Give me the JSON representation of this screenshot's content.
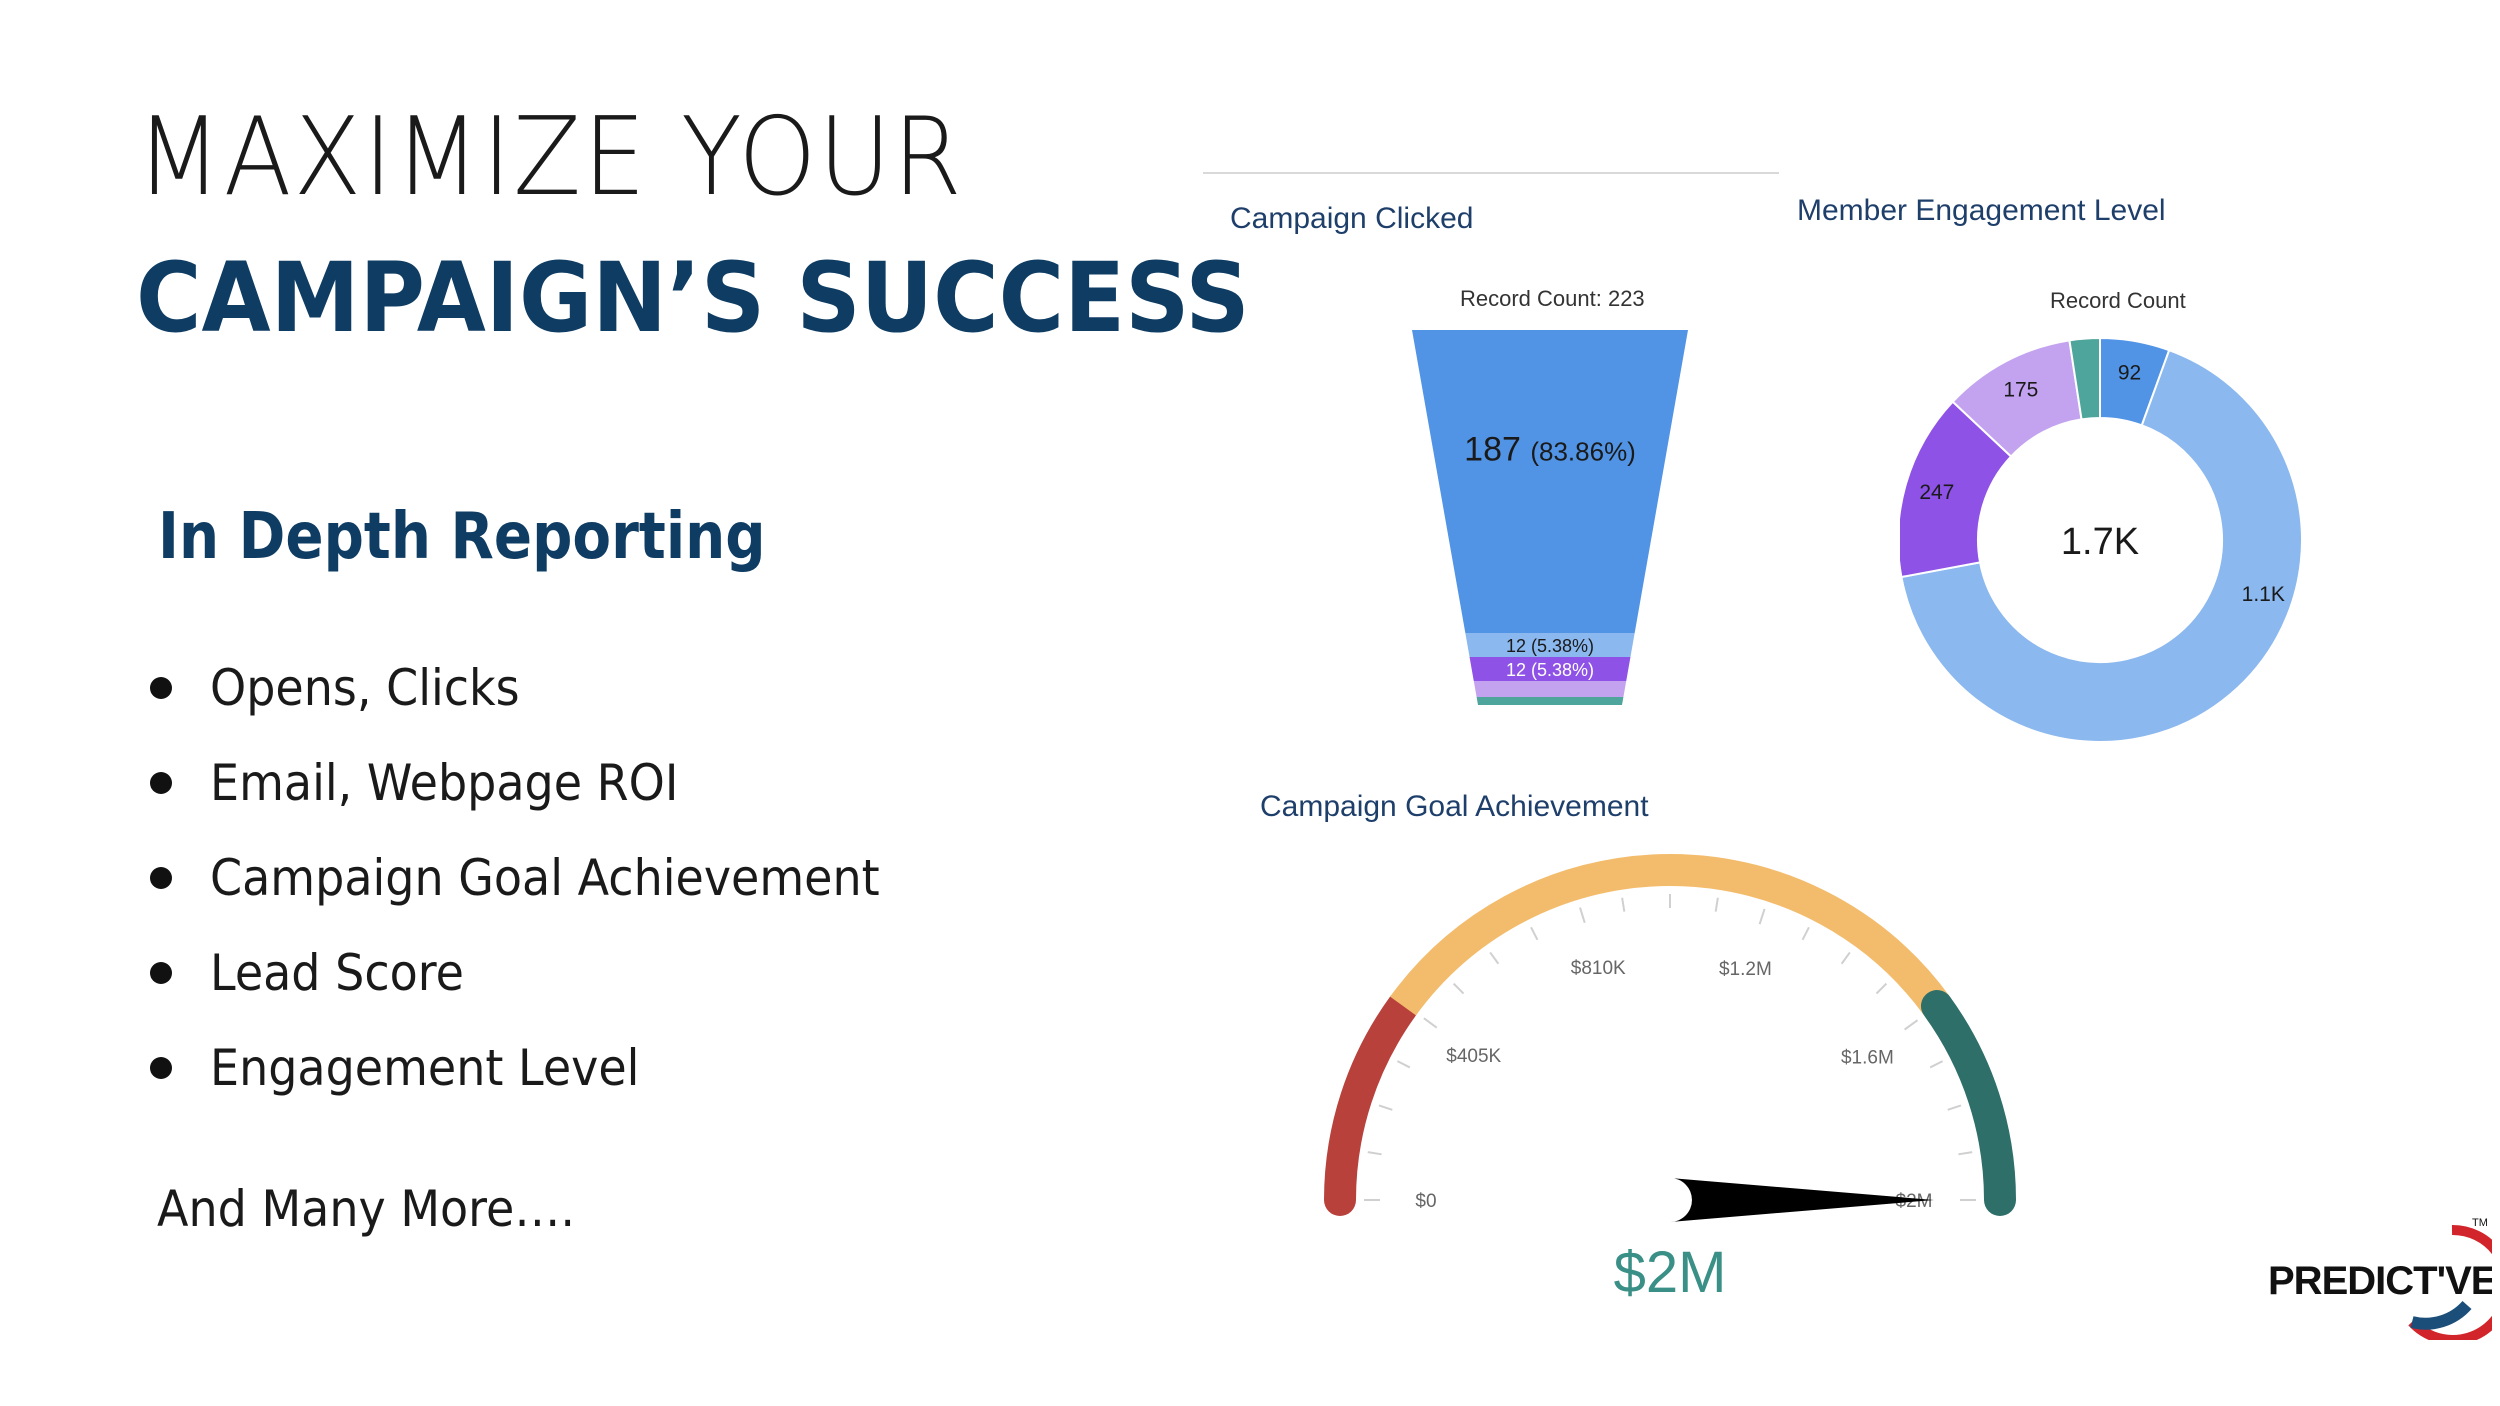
{
  "headline": {
    "line1": "MAXIMIZE YOUR",
    "line2": "CAMPAIGN’S SUCCESS"
  },
  "section": {
    "title": "In Depth Reporting",
    "bullets": [
      "Opens, Clicks",
      "Email, Webpage ROI",
      "Campaign Goal Achievement",
      "Lead Score",
      "Engagement Level"
    ],
    "footer": "And Many More…."
  },
  "logo": {
    "text": "PREDICT'VE",
    "tm": "TM"
  },
  "colors": {
    "navy": "#0e3c63",
    "funnel_blue": "#5194e6",
    "light_blue": "#8bb8ee",
    "purple": "#8e52e6",
    "lavender": "#c3a3f0",
    "teal": "#4ea59b",
    "gauge_red": "#b8413c",
    "gauge_orange": "#f3bc6c",
    "gauge_green": "#2f6f69"
  },
  "chart_data": [
    {
      "type": "funnel",
      "title": "Campaign Clicked",
      "subtitle": "Record Count: 223",
      "total": 223,
      "segments": [
        {
          "value": 187,
          "label": "187",
          "pct_label": "(83.86%)",
          "color": "#5194e6"
        },
        {
          "value": 12,
          "label": "12 (5.38%)",
          "color": "#8bb8ee"
        },
        {
          "value": 12,
          "label": "12 (5.38%)",
          "color": "#8e52e6"
        },
        {
          "value": 9,
          "label": "",
          "color": "#c3a3f0"
        },
        {
          "value": 3,
          "label": "",
          "color": "#4ea59b"
        }
      ]
    },
    {
      "type": "pie",
      "variant": "donut",
      "title": "Member Engagement Level",
      "subtitle": "Record Count",
      "center_label": "1.7K",
      "slices": [
        {
          "label": "92",
          "value": 92,
          "color": "#5194e6"
        },
        {
          "label": "1.1K",
          "value": 1100,
          "color": "#8bb8ee"
        },
        {
          "label": "247",
          "value": 247,
          "color": "#8e52e6"
        },
        {
          "label": "175",
          "value": 175,
          "color": "#c3a3f0"
        },
        {
          "label": "",
          "value": 40,
          "color": "#4ea59b"
        }
      ]
    },
    {
      "type": "gauge",
      "title": "Campaign Goal Achievement",
      "min": 0,
      "max": 2000000,
      "value": 2000000,
      "value_label": "$2M",
      "tick_labels": [
        "$0",
        "$405K",
        "$810K",
        "$1.2M",
        "$1.6M",
        "$2M"
      ],
      "tick_values": [
        0,
        405000,
        810000,
        1200000,
        1600000,
        2000000
      ],
      "bands": [
        {
          "from": 0,
          "to": 400000,
          "color": "#b8413c"
        },
        {
          "from": 400000,
          "to": 1600000,
          "color": "#f3bc6c"
        },
        {
          "from": 1600000,
          "to": 2000000,
          "color": "#2f6f69"
        }
      ]
    }
  ]
}
